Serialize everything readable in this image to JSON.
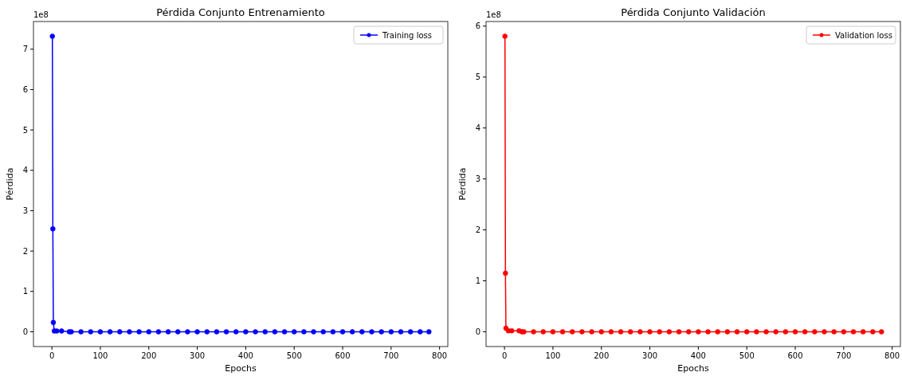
{
  "chart_data": [
    {
      "type": "line",
      "title": "Pérdida Conjunto Entrenamiento",
      "xlabel": "Epochs",
      "ylabel": "Pérdida",
      "annotations": [
        "1e8"
      ],
      "xlim": [
        -38,
        817
      ],
      "ylim": [
        -0.366,
        7.686
      ],
      "xticks": [
        0,
        100,
        200,
        300,
        400,
        500,
        600,
        700,
        800
      ],
      "yticks": [
        0,
        1,
        2,
        3,
        4,
        5,
        6,
        7
      ],
      "legend": "top right",
      "marker": "circle",
      "grid": false,
      "series": [
        {
          "name": "Training loss",
          "color": "#0000ff",
          "x": [
            1,
            2,
            3,
            5,
            10,
            20,
            36,
            40,
            60,
            80,
            100,
            120,
            140,
            160,
            180,
            200,
            220,
            240,
            260,
            280,
            300,
            320,
            340,
            360,
            380,
            400,
            420,
            440,
            460,
            480,
            500,
            520,
            540,
            560,
            580,
            600,
            620,
            640,
            660,
            680,
            700,
            720,
            740,
            760,
            778
          ],
          "values": [
            7.32,
            2.55,
            0.23,
            0.02,
            0.02,
            0.02,
            0,
            0,
            0,
            0,
            0,
            0,
            0,
            0,
            0,
            0,
            0,
            0,
            0,
            0,
            0,
            0,
            0,
            0,
            0,
            0,
            0,
            0,
            0,
            0,
            0,
            0,
            0,
            0,
            0,
            0,
            0,
            0,
            0,
            0,
            0,
            0,
            0,
            0,
            0
          ]
        }
      ]
    },
    {
      "type": "line",
      "title": "Pérdida Conjunto Validación",
      "xlabel": "Epochs",
      "ylabel": "Pérdida",
      "annotations": [
        "1e8"
      ],
      "xlim": [
        -38,
        817
      ],
      "ylim": [
        -0.29,
        6.09
      ],
      "xticks": [
        0,
        100,
        200,
        300,
        400,
        500,
        600,
        700,
        800
      ],
      "yticks": [
        0,
        1,
        2,
        3,
        4,
        5,
        6
      ],
      "legend": "top right",
      "marker": "circle",
      "grid": false,
      "series": [
        {
          "name": "Validation loss",
          "color": "#ff0000",
          "x": [
            1,
            2,
            3,
            8,
            15,
            30,
            36,
            40,
            60,
            80,
            100,
            120,
            140,
            160,
            180,
            200,
            220,
            240,
            260,
            280,
            300,
            320,
            340,
            360,
            380,
            400,
            420,
            440,
            460,
            480,
            500,
            520,
            540,
            560,
            580,
            600,
            620,
            640,
            660,
            680,
            700,
            720,
            740,
            760,
            778
          ],
          "values": [
            5.8,
            1.15,
            0.07,
            0.02,
            0.02,
            0.02,
            0,
            0,
            0,
            0,
            0,
            0,
            0,
            0,
            0,
            0,
            0,
            0,
            0,
            0,
            0,
            0,
            0,
            0,
            0,
            0,
            0,
            0,
            0,
            0,
            0,
            0,
            0,
            0,
            0,
            0,
            0,
            0,
            0,
            0,
            0,
            0,
            0,
            0,
            0
          ]
        }
      ]
    }
  ]
}
